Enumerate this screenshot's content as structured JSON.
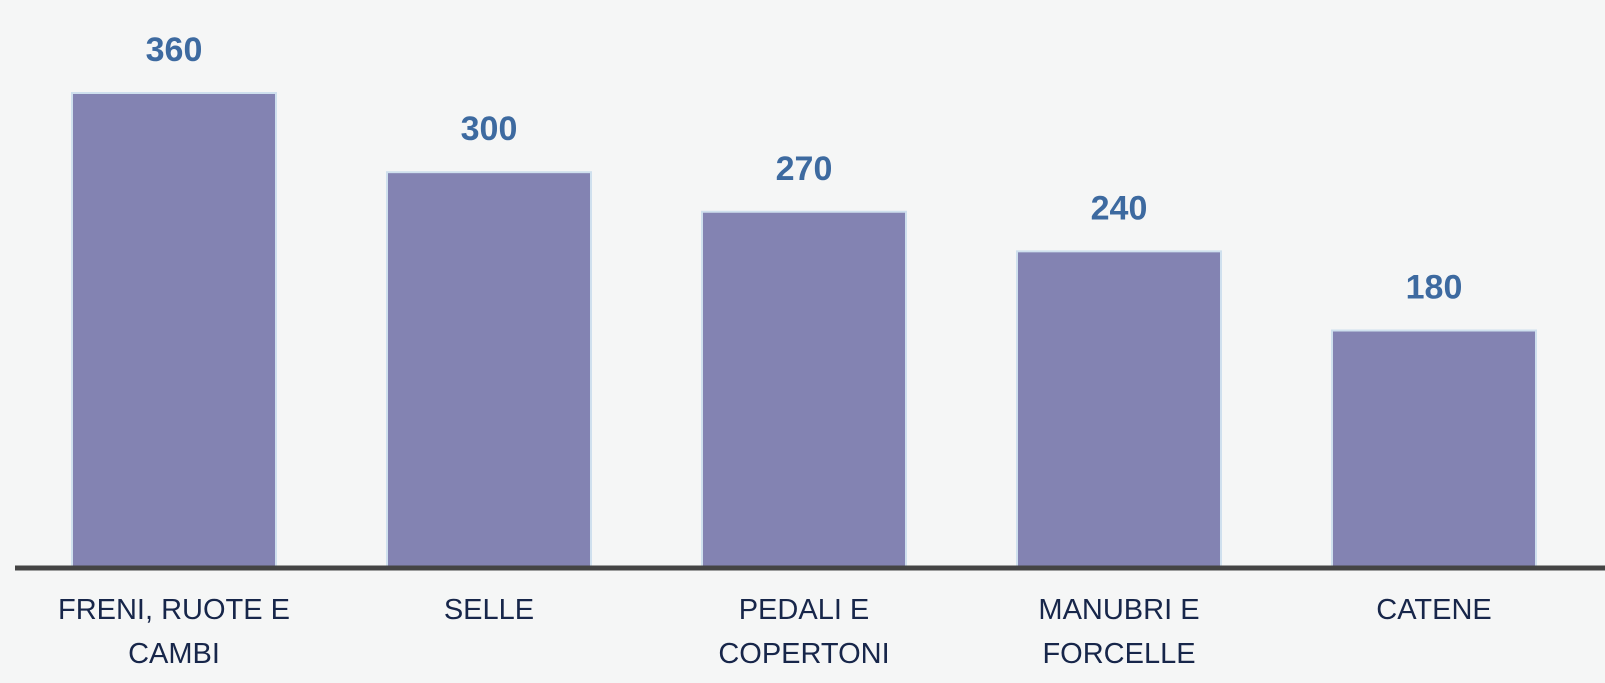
{
  "chart_data": {
    "type": "bar",
    "categories": [
      "FRENI, RUOTE E CAMBI",
      "SELLE",
      "PEDALI E COPERTONI",
      "MANUBRI E FORCELLE",
      "CATENE"
    ],
    "values": [
      360,
      300,
      270,
      240,
      180
    ],
    "color": "#8383b2"
  }
}
